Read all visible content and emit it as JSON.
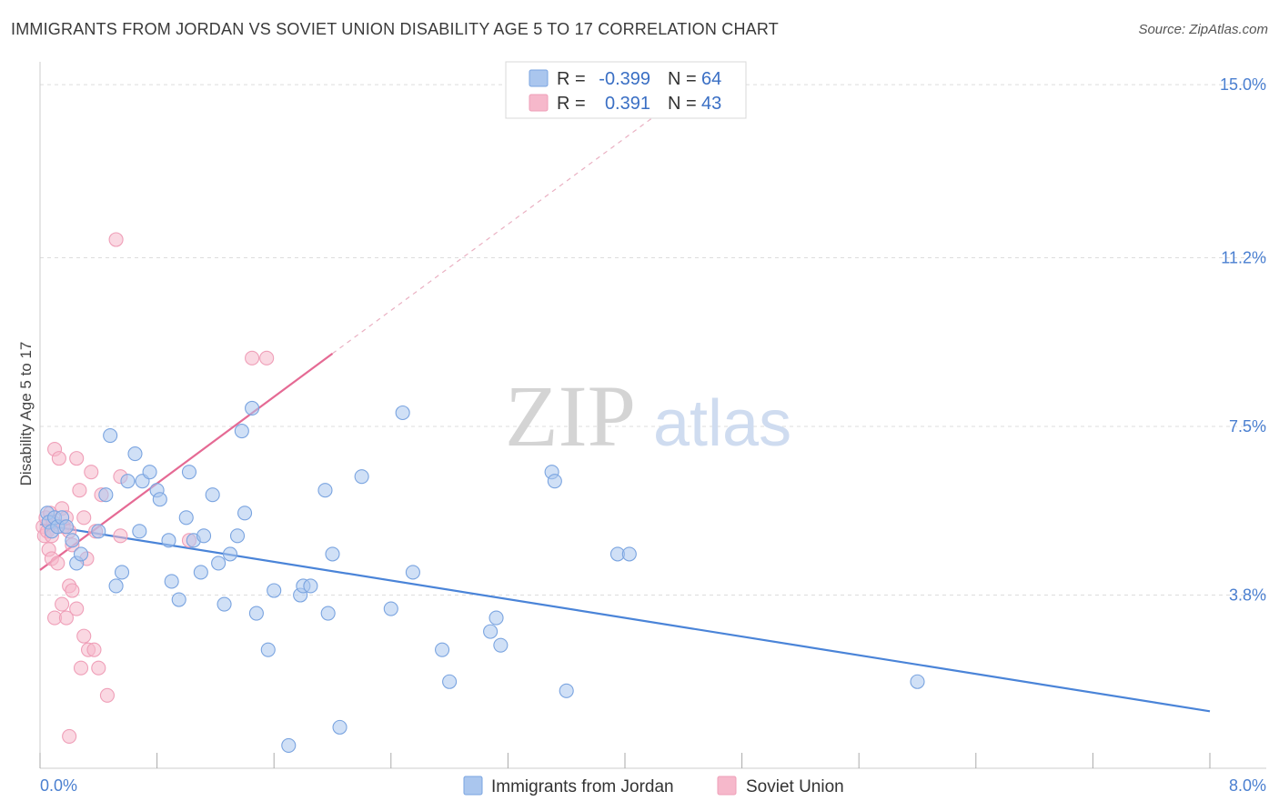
{
  "title": "IMMIGRANTS FROM JORDAN VS SOVIET UNION DISABILITY AGE 5 TO 17 CORRELATION CHART",
  "source": "Source: ZipAtlas.com",
  "colors": {
    "blue": "#4a84d8",
    "blue_fill": "#aac6ee",
    "pink": "#e56a94",
    "pink_fill": "#f6b8cb",
    "grid": "#dddddd",
    "axis_text": "#4a7fd0"
  },
  "legend": {
    "r_label": "R =",
    "n_label": "N =",
    "rows": [
      {
        "r": "-0.399",
        "n": "64",
        "color": "#aac6ee"
      },
      {
        "r": "0.391",
        "n": "43",
        "color": "#f6b8cb"
      }
    ]
  },
  "watermark": {
    "zip": "ZIP",
    "atlas": "atlas"
  },
  "chart_data": {
    "type": "scatter",
    "title": "IMMIGRANTS FROM JORDAN VS SOVIET UNION DISABILITY AGE 5 TO 17 CORRELATION CHART",
    "xlabel": "",
    "ylabel": "Disability Age 5 to 17",
    "xlim": [
      0,
      8
    ],
    "ylim": [
      0,
      15.5
    ],
    "x_tick_labels": [
      "0.0%",
      "8.0%"
    ],
    "y_ticks": [
      3.8,
      7.5,
      11.2,
      15.0
    ],
    "y_tick_labels": [
      "3.8%",
      "7.5%",
      "11.2%",
      "15.0%"
    ],
    "grid": true,
    "legend_position": "bottom",
    "series": [
      {
        "name": "Immigrants from Jordan",
        "color": "#4a84d8",
        "trend": {
          "x": [
            0.0,
            8.0
          ],
          "y": [
            5.35,
            1.25
          ]
        },
        "points": [
          [
            0.05,
            5.6
          ],
          [
            0.06,
            5.4
          ],
          [
            0.08,
            5.2
          ],
          [
            0.1,
            5.5
          ],
          [
            0.12,
            5.3
          ],
          [
            0.15,
            5.5
          ],
          [
            0.18,
            5.3
          ],
          [
            0.22,
            5.0
          ],
          [
            0.25,
            4.5
          ],
          [
            0.28,
            4.7
          ],
          [
            0.4,
            5.2
          ],
          [
            0.45,
            6.0
          ],
          [
            0.48,
            7.3
          ],
          [
            0.52,
            4.0
          ],
          [
            0.56,
            4.3
          ],
          [
            0.6,
            6.3
          ],
          [
            0.65,
            6.9
          ],
          [
            0.68,
            5.2
          ],
          [
            0.7,
            6.3
          ],
          [
            0.75,
            6.5
          ],
          [
            0.8,
            6.1
          ],
          [
            0.82,
            5.9
          ],
          [
            0.88,
            5.0
          ],
          [
            0.9,
            4.1
          ],
          [
            0.95,
            3.7
          ],
          [
            1.0,
            5.5
          ],
          [
            1.02,
            6.5
          ],
          [
            1.05,
            5.0
          ],
          [
            1.1,
            4.3
          ],
          [
            1.12,
            5.1
          ],
          [
            1.18,
            6.0
          ],
          [
            1.22,
            4.5
          ],
          [
            1.26,
            3.6
          ],
          [
            1.3,
            4.7
          ],
          [
            1.35,
            5.1
          ],
          [
            1.38,
            7.4
          ],
          [
            1.4,
            5.6
          ],
          [
            1.45,
            7.9
          ],
          [
            1.48,
            3.4
          ],
          [
            1.56,
            2.6
          ],
          [
            1.6,
            3.9
          ],
          [
            1.7,
            0.5
          ],
          [
            1.78,
            3.8
          ],
          [
            1.8,
            4.0
          ],
          [
            1.85,
            4.0
          ],
          [
            1.95,
            6.1
          ],
          [
            1.97,
            3.4
          ],
          [
            2.0,
            4.7
          ],
          [
            2.05,
            0.9
          ],
          [
            2.2,
            6.4
          ],
          [
            2.4,
            3.5
          ],
          [
            2.48,
            7.8
          ],
          [
            2.55,
            4.3
          ],
          [
            2.75,
            2.6
          ],
          [
            2.8,
            1.9
          ],
          [
            3.08,
            3.0
          ],
          [
            3.12,
            3.3
          ],
          [
            3.15,
            2.7
          ],
          [
            3.5,
            6.5
          ],
          [
            3.52,
            6.3
          ],
          [
            3.6,
            1.7
          ],
          [
            3.95,
            4.7
          ],
          [
            4.03,
            4.7
          ],
          [
            6.0,
            1.9
          ]
        ]
      },
      {
        "name": "Soviet Union",
        "color": "#e56a94",
        "trend": {
          "x": [
            0.0,
            2.0
          ],
          "y": [
            4.35,
            9.1
          ]
        },
        "trend_dashed": {
          "x": [
            2.0,
            4.2
          ],
          "y": [
            9.1,
            14.3
          ]
        },
        "points": [
          [
            0.02,
            5.3
          ],
          [
            0.03,
            5.1
          ],
          [
            0.04,
            5.5
          ],
          [
            0.05,
            5.2
          ],
          [
            0.06,
            4.8
          ],
          [
            0.07,
            5.6
          ],
          [
            0.08,
            4.6
          ],
          [
            0.09,
            5.4
          ],
          [
            0.1,
            7.0
          ],
          [
            0.12,
            4.5
          ],
          [
            0.13,
            6.8
          ],
          [
            0.15,
            5.7
          ],
          [
            0.16,
            5.3
          ],
          [
            0.18,
            5.5
          ],
          [
            0.2,
            5.2
          ],
          [
            0.22,
            4.9
          ],
          [
            0.25,
            6.8
          ],
          [
            0.27,
            6.1
          ],
          [
            0.3,
            5.5
          ],
          [
            0.32,
            4.6
          ],
          [
            0.35,
            6.5
          ],
          [
            0.38,
            5.2
          ],
          [
            0.42,
            6.0
          ],
          [
            0.52,
            11.6
          ],
          [
            0.55,
            6.4
          ],
          [
            0.55,
            5.1
          ],
          [
            1.02,
            5.0
          ],
          [
            1.45,
            9.0
          ],
          [
            1.55,
            9.0
          ],
          [
            0.15,
            3.6
          ],
          [
            0.1,
            3.3
          ],
          [
            0.18,
            3.3
          ],
          [
            0.2,
            4.0
          ],
          [
            0.22,
            3.9
          ],
          [
            0.25,
            3.5
          ],
          [
            0.28,
            2.2
          ],
          [
            0.3,
            2.9
          ],
          [
            0.33,
            2.6
          ],
          [
            0.37,
            2.6
          ],
          [
            0.4,
            2.2
          ],
          [
            0.46,
            1.6
          ],
          [
            0.2,
            0.7
          ],
          [
            0.08,
            5.1
          ]
        ]
      }
    ]
  }
}
